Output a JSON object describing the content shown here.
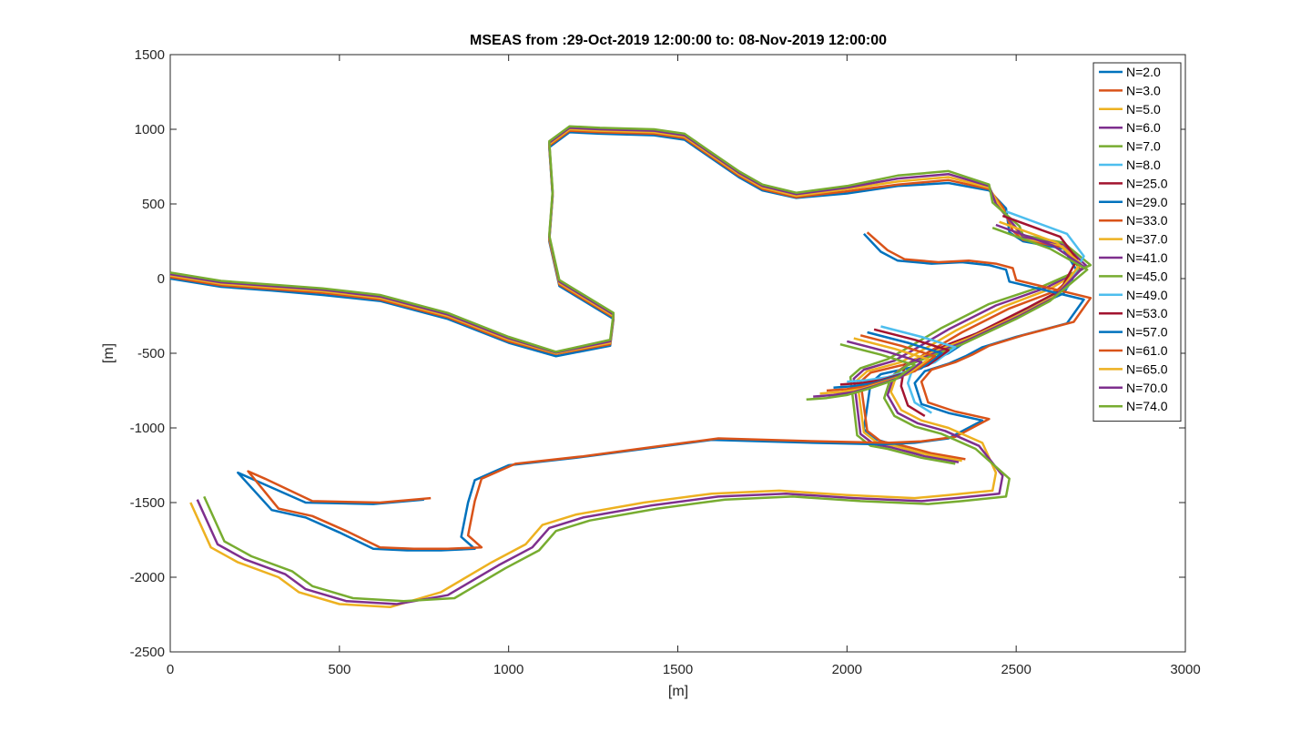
{
  "chart_data": {
    "type": "line",
    "title": "MSEAS  from :29-Oct-2019 12:00:00 to: 08-Nov-2019 12:00:00",
    "xlabel": "[m]",
    "ylabel": "[m]",
    "xlim": [
      0,
      3000
    ],
    "ylim": [
      -2500,
      1500
    ],
    "xticks": [
      "0",
      "500",
      "1000",
      "1500",
      "2000",
      "2500",
      "3000"
    ],
    "yticks": [
      "1500",
      "1000",
      "500",
      "0",
      "-500",
      "-1000",
      "-1500",
      "-2000",
      "-2500"
    ],
    "grid": false,
    "legend_position": "top-right",
    "series": [
      {
        "name": "N=2.0",
        "color": "#0072BD",
        "x": [
          0,
          150,
          300,
          450,
          620,
          820,
          1000,
          1140,
          1300,
          1310,
          1150,
          1120,
          1130,
          1120,
          1180,
          1270,
          1430,
          1520,
          1590,
          1680,
          1750,
          1850,
          2000,
          2150,
          2300,
          2420,
          2470,
          2480,
          2520,
          2640,
          2680,
          2640,
          2520,
          2380,
          2300,
          2220,
          2100,
          2070,
          2050,
          2090,
          2120,
          2200,
          2300
        ],
        "y": [
          0,
          -55,
          -80,
          -110,
          -150,
          -270,
          -430,
          -520,
          -450,
          -270,
          -50,
          250,
          550,
          880,
          980,
          970,
          960,
          930,
          820,
          680,
          590,
          540,
          570,
          620,
          640,
          590,
          470,
          310,
          250,
          200,
          50,
          -100,
          -220,
          -380,
          -500,
          -580,
          -640,
          -700,
          -1010,
          -1080,
          -1100,
          -1160,
          -1200
        ]
      },
      {
        "name": "N=3.0",
        "color": "#D95319",
        "x": [
          0,
          150,
          300,
          450,
          620,
          820,
          1000,
          1140,
          1300,
          1310,
          1150,
          1120,
          1130,
          1120,
          1180,
          1270,
          1430,
          1520,
          1590,
          1680,
          1750,
          1850,
          2000,
          2150,
          2300,
          2420,
          2460,
          2490,
          2520,
          2640,
          2690,
          2620,
          2480,
          2340,
          2250,
          2180,
          2070,
          2040,
          2060,
          2100,
          2150,
          2250,
          2350
        ],
        "y": [
          10,
          -45,
          -70,
          -95,
          -140,
          -260,
          -420,
          -505,
          -440,
          -260,
          -40,
          260,
          560,
          890,
          990,
          980,
          970,
          940,
          830,
          690,
          600,
          545,
          585,
          630,
          660,
          600,
          480,
          320,
          260,
          210,
          60,
          -80,
          -200,
          -360,
          -480,
          -570,
          -630,
          -690,
          -1020,
          -1090,
          -1110,
          -1170,
          -1210
        ]
      },
      {
        "name": "N=5.0",
        "color": "#EDB120",
        "x": [
          0,
          150,
          300,
          450,
          620,
          820,
          1000,
          1140,
          1300,
          1310,
          1150,
          1120,
          1130,
          1120,
          1180,
          1270,
          1430,
          1520,
          1590,
          1680,
          1750,
          1850,
          2000,
          2150,
          2300,
          2420,
          2450,
          2500,
          2520,
          2640,
          2700,
          2600,
          2460,
          2320,
          2230,
          2160,
          2060,
          2030,
          2050,
          2090,
          2140,
          2240,
          2340
        ],
        "y": [
          20,
          -35,
          -60,
          -85,
          -130,
          -250,
          -410,
          -500,
          -430,
          -250,
          -30,
          270,
          570,
          900,
          1000,
          990,
          980,
          950,
          840,
          700,
          610,
          555,
          600,
          650,
          680,
          610,
          490,
          330,
          270,
          220,
          70,
          -70,
          -190,
          -350,
          -470,
          -560,
          -620,
          -680,
          -1030,
          -1100,
          -1120,
          -1180,
          -1220
        ]
      },
      {
        "name": "N=6.0",
        "color": "#7E2F8E",
        "x": [
          0,
          150,
          300,
          450,
          620,
          820,
          1000,
          1140,
          1300,
          1310,
          1150,
          1120,
          1130,
          1120,
          1180,
          1270,
          1430,
          1520,
          1590,
          1680,
          1750,
          1850,
          2000,
          2150,
          2300,
          2420,
          2440,
          2500,
          2520,
          2640,
          2710,
          2590,
          2440,
          2300,
          2210,
          2140,
          2050,
          2020,
          2040,
          2080,
          2130,
          2230,
          2330
        ],
        "y": [
          30,
          -25,
          -50,
          -75,
          -120,
          -240,
          -400,
          -495,
          -420,
          -240,
          -20,
          280,
          580,
          910,
          1010,
          1000,
          990,
          960,
          850,
          710,
          620,
          565,
          610,
          670,
          700,
          620,
          500,
          340,
          280,
          230,
          80,
          -60,
          -180,
          -340,
          -460,
          -550,
          -610,
          -670,
          -1040,
          -1110,
          -1130,
          -1190,
          -1230
        ]
      },
      {
        "name": "N=7.0",
        "color": "#77AC30",
        "x": [
          0,
          150,
          300,
          450,
          620,
          820,
          1000,
          1140,
          1300,
          1310,
          1150,
          1120,
          1130,
          1120,
          1180,
          1270,
          1430,
          1520,
          1590,
          1680,
          1750,
          1850,
          2000,
          2150,
          2300,
          2420,
          2430,
          2510,
          2520,
          2640,
          2720,
          2580,
          2420,
          2280,
          2190,
          2120,
          2040,
          2010,
          2030,
          2070,
          2120,
          2220,
          2320
        ],
        "y": [
          40,
          -15,
          -40,
          -65,
          -110,
          -230,
          -390,
          -490,
          -410,
          -230,
          -10,
          290,
          590,
          920,
          1020,
          1010,
          1000,
          970,
          860,
          720,
          630,
          575,
          620,
          690,
          720,
          630,
          510,
          350,
          290,
          240,
          90,
          -50,
          -170,
          -330,
          -450,
          -540,
          -600,
          -660,
          -1050,
          -1120,
          -1140,
          -1200,
          -1240
        ]
      },
      {
        "name": "N=8.0",
        "color": "#4DBEEE",
        "x": [
          2470,
          2650,
          2700,
          2650,
          2560,
          2400,
          2330,
          2260,
          2200,
          2180,
          2200,
          2250
        ],
        "y": [
          450,
          300,
          150,
          -60,
          -180,
          -350,
          -420,
          -480,
          -560,
          -700,
          -830,
          -900
        ]
      },
      {
        "name": "N=25.0",
        "color": "#A2142F",
        "x": [
          2460,
          2630,
          2680,
          2630,
          2530,
          2380,
          2300,
          2240,
          2170,
          2160,
          2180,
          2230
        ],
        "y": [
          420,
          280,
          130,
          -80,
          -200,
          -370,
          -440,
          -500,
          -580,
          -720,
          -850,
          -920
        ]
      },
      {
        "name": "N=29.0",
        "color": "#0072BD",
        "x": [
          2050,
          2100,
          2150,
          2250,
          2340,
          2420,
          2470,
          2480,
          2700,
          2650,
          2500,
          2400,
          2350,
          2300,
          2230,
          2200,
          2220,
          2300,
          2400,
          2300,
          2200,
          2100,
          1900,
          1600,
          1400,
          1200,
          1000,
          950,
          900,
          880,
          860,
          900,
          800,
          700,
          600,
          500,
          400,
          300,
          200,
          250,
          400,
          600,
          750
        ],
        "y": [
          300,
          180,
          120,
          100,
          110,
          90,
          60,
          -20,
          -140,
          -300,
          -390,
          -460,
          -520,
          -570,
          -620,
          -700,
          -840,
          -900,
          -950,
          -1070,
          -1100,
          -1110,
          -1100,
          -1080,
          -1140,
          -1200,
          -1250,
          -1300,
          -1350,
          -1500,
          -1730,
          -1810,
          -1820,
          -1820,
          -1810,
          -1700,
          -1600,
          -1550,
          -1300,
          -1350,
          -1500,
          -1510,
          -1480
        ]
      },
      {
        "name": "N=33.0",
        "color": "#D95319",
        "x": [
          2060,
          2120,
          2170,
          2270,
          2360,
          2440,
          2490,
          2500,
          2720,
          2670,
          2520,
          2420,
          2370,
          2320,
          2250,
          2220,
          2240,
          2320,
          2420,
          2320,
          2220,
          2120,
          1920,
          1620,
          1420,
          1220,
          1020,
          970,
          920,
          900,
          880,
          920,
          820,
          720,
          620,
          520,
          420,
          320,
          230,
          280,
          420,
          620,
          770
        ],
        "y": [
          310,
          190,
          130,
          110,
          120,
          100,
          70,
          -10,
          -130,
          -290,
          -380,
          -450,
          -510,
          -560,
          -610,
          -690,
          -830,
          -890,
          -940,
          -1060,
          -1090,
          -1100,
          -1090,
          -1070,
          -1130,
          -1190,
          -1240,
          -1290,
          -1340,
          -1490,
          -1720,
          -1800,
          -1810,
          -1810,
          -1800,
          -1690,
          -1590,
          -1540,
          -1290,
          -1340,
          -1490,
          -1500,
          -1470
        ]
      },
      {
        "name": "N=37.0",
        "color": "#EDB120",
        "x": [
          2450,
          2620,
          2690,
          2620,
          2520,
          2360,
          2280,
          2200,
          2150,
          2130,
          2160,
          2220,
          2300,
          2400,
          2440,
          2430,
          2300,
          2200,
          2000,
          1800,
          1600,
          1400,
          1200,
          1100,
          1050,
          950,
          800,
          650,
          500,
          380,
          320,
          200,
          120,
          60
        ],
        "y": [
          380,
          240,
          100,
          -110,
          -230,
          -400,
          -470,
          -540,
          -620,
          -760,
          -880,
          -950,
          -1000,
          -1100,
          -1300,
          -1420,
          -1450,
          -1470,
          -1450,
          -1420,
          -1440,
          -1500,
          -1580,
          -1650,
          -1780,
          -1900,
          -2100,
          -2200,
          -2180,
          -2100,
          -2000,
          -1900,
          -1800,
          -1500
        ]
      },
      {
        "name": "N=41.0",
        "color": "#7E2F8E",
        "x": [
          2440,
          2610,
          2700,
          2610,
          2510,
          2350,
          2270,
          2190,
          2140,
          2120,
          2150,
          2210,
          2290,
          2390,
          2460,
          2450,
          2320,
          2220,
          2020,
          1820,
          1620,
          1420,
          1220,
          1120,
          1070,
          970,
          820,
          670,
          520,
          400,
          340,
          220,
          140,
          80
        ],
        "y": [
          360,
          220,
          80,
          -130,
          -250,
          -420,
          -490,
          -560,
          -640,
          -780,
          -900,
          -970,
          -1020,
          -1120,
          -1320,
          -1440,
          -1470,
          -1490,
          -1470,
          -1440,
          -1460,
          -1520,
          -1600,
          -1670,
          -1800,
          -1920,
          -2120,
          -2180,
          -2160,
          -2080,
          -1980,
          -1880,
          -1780,
          -1480
        ]
      },
      {
        "name": "N=45.0",
        "color": "#77AC30",
        "x": [
          2430,
          2600,
          2710,
          2600,
          2500,
          2340,
          2260,
          2180,
          2130,
          2110,
          2140,
          2200,
          2280,
          2380,
          2480,
          2470,
          2340,
          2240,
          2040,
          1840,
          1640,
          1440,
          1240,
          1140,
          1090,
          990,
          840,
          690,
          540,
          420,
          360,
          240,
          160,
          100
        ],
        "y": [
          340,
          200,
          60,
          -150,
          -270,
          -440,
          -510,
          -580,
          -660,
          -800,
          -920,
          -990,
          -1040,
          -1140,
          -1340,
          -1460,
          -1490,
          -1510,
          -1490,
          -1460,
          -1480,
          -1540,
          -1620,
          -1690,
          -1820,
          -1940,
          -2140,
          -2160,
          -2140,
          -2060,
          -1960,
          -1860,
          -1760,
          -1460
        ]
      },
      {
        "name": "N=49.0",
        "color": "#4DBEEE",
        "x": [
          2100,
          2220,
          2320,
          2260,
          2180,
          2120,
          2060,
          2000
        ],
        "y": [
          -320,
          -390,
          -460,
          -560,
          -620,
          -660,
          -680,
          -690
        ]
      },
      {
        "name": "N=53.0",
        "color": "#A2142F",
        "x": [
          2080,
          2200,
          2300,
          2240,
          2160,
          2100,
          2040,
          1980
        ],
        "y": [
          -340,
          -410,
          -480,
          -580,
          -640,
          -680,
          -700,
          -710
        ]
      },
      {
        "name": "N=57.0",
        "color": "#0072BD",
        "x": [
          2060,
          2180,
          2280,
          2220,
          2140,
          2080,
          2020,
          1960
        ],
        "y": [
          -360,
          -430,
          -500,
          -600,
          -660,
          -700,
          -720,
          -730
        ]
      },
      {
        "name": "N=61.0",
        "color": "#D95319",
        "x": [
          2040,
          2160,
          2260,
          2200,
          2120,
          2060,
          2000,
          1940
        ],
        "y": [
          -380,
          -450,
          -520,
          -620,
          -680,
          -720,
          -740,
          -750
        ]
      },
      {
        "name": "N=65.0",
        "color": "#EDB120",
        "x": [
          2020,
          2140,
          2240,
          2180,
          2100,
          2040,
          1980,
          1920
        ],
        "y": [
          -400,
          -470,
          -540,
          -640,
          -700,
          -740,
          -760,
          -770
        ]
      },
      {
        "name": "N=70.0",
        "color": "#7E2F8E",
        "x": [
          2000,
          2120,
          2220,
          2160,
          2080,
          2020,
          1960,
          1900
        ],
        "y": [
          -420,
          -490,
          -560,
          -660,
          -720,
          -760,
          -780,
          -790
        ]
      },
      {
        "name": "N=74.0",
        "color": "#77AC30",
        "x": [
          1980,
          2100,
          2200,
          2140,
          2060,
          2000,
          1940,
          1880
        ],
        "y": [
          -440,
          -510,
          -580,
          -680,
          -740,
          -780,
          -800,
          -810
        ]
      }
    ]
  }
}
